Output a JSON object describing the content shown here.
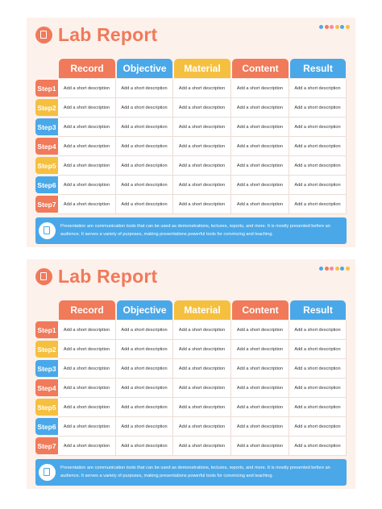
{
  "sections": [
    {
      "title": "Lab Report",
      "headers": [
        "Record",
        "Objective",
        "Material",
        "Content",
        "Result"
      ],
      "rows": [
        {
          "step": "Step1",
          "cells": [
            "Add a short description",
            "Add a short description",
            "Add a short description",
            "Add a short description",
            "Add a short description"
          ]
        },
        {
          "step": "Step2",
          "cells": [
            "Add a short description",
            "Add a short description",
            "Add a short description",
            "Add a short description",
            "Add a short description"
          ]
        },
        {
          "step": "Step3",
          "cells": [
            "Add a short description",
            "Add a short description",
            "Add a short description",
            "Add a short description",
            "Add a short description"
          ]
        },
        {
          "step": "Step4",
          "cells": [
            "Add a short description",
            "Add a short description",
            "Add a short description",
            "Add a short description",
            "Add a short description"
          ]
        },
        {
          "step": "Step5",
          "cells": [
            "Add a short description",
            "Add a short description",
            "Add a short description",
            "Add a short description",
            "Add a short description"
          ]
        },
        {
          "step": "Step6",
          "cells": [
            "Add a short description",
            "Add a short description",
            "Add a short description",
            "Add a short description",
            "Add a short description"
          ]
        },
        {
          "step": "Step7",
          "cells": [
            "Add a short description",
            "Add a short description",
            "Add a short description",
            "Add a short description",
            "Add a short description"
          ]
        }
      ],
      "footer": "Presentation are communication tools that can be used as demonstrations, lectures, reports, and more. It is mostly presented before an audience. It serves a variety of purposes, making presentations powerful tools for convincing and teaching."
    },
    {
      "title": "Lab Report",
      "headers": [
        "Record",
        "Objective",
        "Material",
        "Content",
        "Result"
      ],
      "rows": [
        {
          "step": "Step1",
          "cells": [
            "Add a short description",
            "Add a short description",
            "Add a short description",
            "Add a short description",
            "Add a short description"
          ]
        },
        {
          "step": "Step2",
          "cells": [
            "Add a short description",
            "Add a short description",
            "Add a short description",
            "Add a short description",
            "Add a short description"
          ]
        },
        {
          "step": "Step3",
          "cells": [
            "Add a short description",
            "Add a short description",
            "Add a short description",
            "Add a short description",
            "Add a short description"
          ]
        },
        {
          "step": "Step4",
          "cells": [
            "Add a short description",
            "Add a short description",
            "Add a short description",
            "Add a short description",
            "Add a short description"
          ]
        },
        {
          "step": "Step5",
          "cells": [
            "Add a short description",
            "Add a short description",
            "Add a short description",
            "Add a short description",
            "Add a short description"
          ]
        },
        {
          "step": "Step6",
          "cells": [
            "Add a short description",
            "Add a short description",
            "Add a short description",
            "Add a short description",
            "Add a short description"
          ]
        },
        {
          "step": "Step7",
          "cells": [
            "Add a short description",
            "Add a short description",
            "Add a short description",
            "Add a short description",
            "Add a short description"
          ]
        }
      ],
      "footer": "Presentation are communication tools that can be used as demonstrations, lectures, reports, and more. It is mostly presented before an audience. It serves a variety of purposes, making presentations powerful tools for convincing and teaching."
    }
  ]
}
